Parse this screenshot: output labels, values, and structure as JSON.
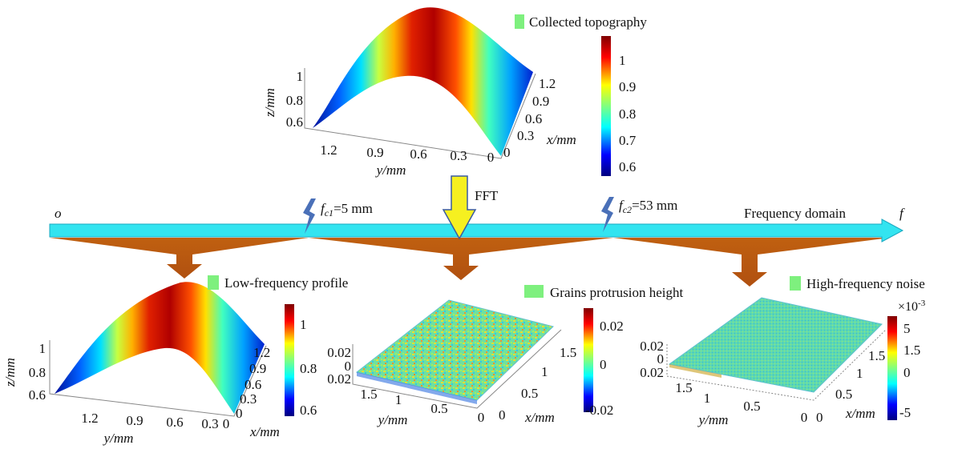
{
  "top": {
    "legend": "Collected topography",
    "z_label": "z/mm",
    "y_label": "y/mm",
    "x_label": "x/mm",
    "z_ticks": [
      "1",
      "0.8",
      "0.6"
    ],
    "y_ticks": [
      "1.2",
      "0.9",
      "0.6",
      "0.3",
      "0"
    ],
    "x_ticks": [
      "1.2",
      "0.9",
      "0.6",
      "0.3",
      "0"
    ],
    "colorbar_ticks": [
      "1",
      "0.9",
      "0.8",
      "0.7",
      "0.6"
    ]
  },
  "axis": {
    "origin": "o",
    "fft": "FFT",
    "domain": "Frequency domain",
    "end": "f",
    "fc1": {
      "symbol": "f",
      "subscript": "c1",
      "value": "=5 mm"
    },
    "fc2": {
      "symbol": "f",
      "subscript": "c2",
      "value": "=53 mm"
    }
  },
  "low": {
    "legend": "Low-frequency profile",
    "z_label": "z/mm",
    "y_label": "y/mm",
    "x_label": "x/mm",
    "z_ticks": [
      "1",
      "0.8",
      "0.6"
    ],
    "y_ticks": [
      "1.2",
      "0.9",
      "0.6",
      "0.3",
      "0"
    ],
    "x_ticks": [
      "1.2",
      "0.9",
      "0.6",
      "0.3",
      "0"
    ],
    "colorbar_ticks": [
      "1",
      "0.8",
      "0.6"
    ]
  },
  "grains": {
    "legend": "Grains protrusion height",
    "y_label": "y/mm",
    "x_label": "x/mm",
    "z_ticks": [
      "0.02",
      "0",
      "0.02"
    ],
    "y_ticks": [
      "1.5",
      "1",
      "0.5",
      "0"
    ],
    "x_ticks": [
      "1.5",
      "1",
      "0.5",
      "0"
    ],
    "colorbar_ticks": [
      "0.02",
      "0",
      "-0.02"
    ]
  },
  "high": {
    "legend": "High-frequency noise",
    "y_label": "y/mm",
    "x_label": "x/mm",
    "z_ticks": [
      "0.02",
      "0",
      "0.02"
    ],
    "y_ticks": [
      "1.5",
      "1",
      "0.5",
      "0"
    ],
    "x_ticks": [
      "1.5",
      "1",
      "0.5",
      "0"
    ],
    "colorbar_exponent": {
      "base": "×10",
      "power": "-3"
    },
    "colorbar_ticks": [
      "5",
      "1.5",
      "0",
      "-5"
    ]
  }
}
